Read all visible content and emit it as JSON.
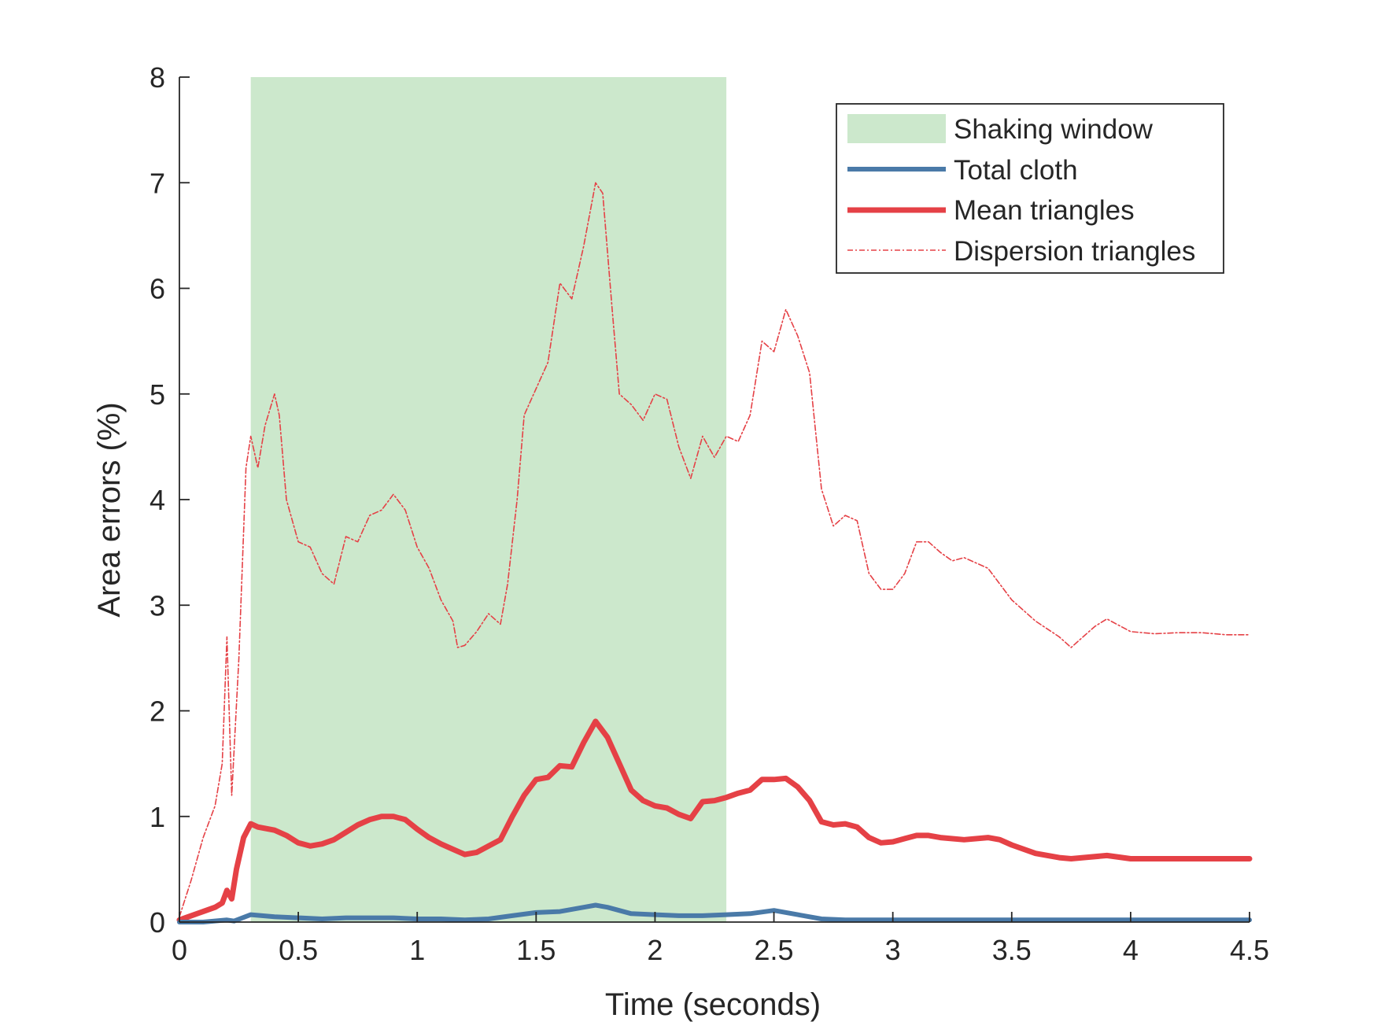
{
  "colors": {
    "shaking_window": "#cce8cc",
    "total_cloth": "#4a7aa8",
    "mean_triangles": "#e54146",
    "dispersion_triangles": "#e54146",
    "axis": "#262626"
  },
  "chart_data": {
    "type": "line",
    "xlabel": "Time (seconds)",
    "ylabel": "Area errors (%)",
    "xlim": [
      0,
      4.5
    ],
    "ylim": [
      0,
      8
    ],
    "xticks": [
      0,
      0.5,
      1,
      1.5,
      2,
      2.5,
      3,
      3.5,
      4,
      4.5
    ],
    "xtick_labels": [
      "0",
      "0.5",
      "1",
      "1.5",
      "2",
      "2.5",
      "3",
      "3.5",
      "4",
      "4.5"
    ],
    "yticks": [
      0,
      1,
      2,
      3,
      4,
      5,
      6,
      7,
      8
    ],
    "ytick_labels": [
      "0",
      "1",
      "2",
      "3",
      "4",
      "5",
      "6",
      "7",
      "8"
    ],
    "grid": false,
    "legend_position": "top-right",
    "shaded_region": {
      "name": "Shaking window",
      "x_start": 0.3,
      "x_end": 2.3
    },
    "legend": [
      "Shaking window",
      "Total cloth",
      "Mean triangles",
      "Dispersion triangles"
    ],
    "series": [
      {
        "name": "Total cloth",
        "style": "solid-medium",
        "points": [
          [
            0,
            0
          ],
          [
            0.1,
            0.0
          ],
          [
            0.2,
            0.02
          ],
          [
            0.23,
            0.01
          ],
          [
            0.3,
            0.07
          ],
          [
            0.4,
            0.05
          ],
          [
            0.5,
            0.04
          ],
          [
            0.6,
            0.03
          ],
          [
            0.7,
            0.04
          ],
          [
            0.8,
            0.04
          ],
          [
            0.9,
            0.04
          ],
          [
            1.0,
            0.03
          ],
          [
            1.1,
            0.03
          ],
          [
            1.2,
            0.02
          ],
          [
            1.3,
            0.03
          ],
          [
            1.4,
            0.06
          ],
          [
            1.5,
            0.09
          ],
          [
            1.6,
            0.1
          ],
          [
            1.7,
            0.14
          ],
          [
            1.75,
            0.16
          ],
          [
            1.8,
            0.14
          ],
          [
            1.9,
            0.08
          ],
          [
            2.0,
            0.07
          ],
          [
            2.1,
            0.06
          ],
          [
            2.2,
            0.06
          ],
          [
            2.3,
            0.07
          ],
          [
            2.4,
            0.08
          ],
          [
            2.5,
            0.11
          ],
          [
            2.6,
            0.07
          ],
          [
            2.7,
            0.03
          ],
          [
            2.8,
            0.02
          ],
          [
            3.0,
            0.02
          ],
          [
            3.2,
            0.02
          ],
          [
            3.5,
            0.02
          ],
          [
            4.0,
            0.02
          ],
          [
            4.5,
            0.02
          ]
        ]
      },
      {
        "name": "Mean triangles",
        "style": "solid-thick",
        "points": [
          [
            0,
            0.02
          ],
          [
            0.05,
            0.06
          ],
          [
            0.1,
            0.1
          ],
          [
            0.15,
            0.14
          ],
          [
            0.18,
            0.18
          ],
          [
            0.2,
            0.3
          ],
          [
            0.22,
            0.22
          ],
          [
            0.24,
            0.5
          ],
          [
            0.27,
            0.8
          ],
          [
            0.3,
            0.93
          ],
          [
            0.33,
            0.9
          ],
          [
            0.4,
            0.87
          ],
          [
            0.45,
            0.82
          ],
          [
            0.5,
            0.75
          ],
          [
            0.55,
            0.72
          ],
          [
            0.6,
            0.74
          ],
          [
            0.65,
            0.78
          ],
          [
            0.7,
            0.85
          ],
          [
            0.75,
            0.92
          ],
          [
            0.8,
            0.97
          ],
          [
            0.85,
            1.0
          ],
          [
            0.9,
            1.0
          ],
          [
            0.95,
            0.97
          ],
          [
            1.0,
            0.88
          ],
          [
            1.05,
            0.8
          ],
          [
            1.1,
            0.74
          ],
          [
            1.15,
            0.69
          ],
          [
            1.2,
            0.64
          ],
          [
            1.25,
            0.66
          ],
          [
            1.3,
            0.72
          ],
          [
            1.35,
            0.78
          ],
          [
            1.4,
            1.0
          ],
          [
            1.45,
            1.2
          ],
          [
            1.5,
            1.35
          ],
          [
            1.55,
            1.37
          ],
          [
            1.6,
            1.48
          ],
          [
            1.65,
            1.47
          ],
          [
            1.7,
            1.7
          ],
          [
            1.75,
            1.9
          ],
          [
            1.8,
            1.75
          ],
          [
            1.85,
            1.5
          ],
          [
            1.9,
            1.25
          ],
          [
            1.95,
            1.15
          ],
          [
            2.0,
            1.1
          ],
          [
            2.05,
            1.08
          ],
          [
            2.1,
            1.02
          ],
          [
            2.15,
            0.98
          ],
          [
            2.2,
            1.14
          ],
          [
            2.25,
            1.15
          ],
          [
            2.3,
            1.18
          ],
          [
            2.35,
            1.22
          ],
          [
            2.4,
            1.25
          ],
          [
            2.45,
            1.35
          ],
          [
            2.5,
            1.35
          ],
          [
            2.55,
            1.36
          ],
          [
            2.6,
            1.28
          ],
          [
            2.65,
            1.15
          ],
          [
            2.7,
            0.95
          ],
          [
            2.75,
            0.92
          ],
          [
            2.8,
            0.93
          ],
          [
            2.85,
            0.9
          ],
          [
            2.9,
            0.8
          ],
          [
            2.95,
            0.75
          ],
          [
            3.0,
            0.76
          ],
          [
            3.05,
            0.79
          ],
          [
            3.1,
            0.82
          ],
          [
            3.15,
            0.82
          ],
          [
            3.2,
            0.8
          ],
          [
            3.3,
            0.78
          ],
          [
            3.4,
            0.8
          ],
          [
            3.45,
            0.78
          ],
          [
            3.5,
            0.73
          ],
          [
            3.6,
            0.65
          ],
          [
            3.7,
            0.61
          ],
          [
            3.75,
            0.6
          ],
          [
            3.8,
            0.61
          ],
          [
            3.9,
            0.63
          ],
          [
            4.0,
            0.6
          ],
          [
            4.2,
            0.6
          ],
          [
            4.5,
            0.6
          ]
        ]
      },
      {
        "name": "Dispersion triangles",
        "style": "dash-dot-thin",
        "points": [
          [
            0,
            0.05
          ],
          [
            0.05,
            0.4
          ],
          [
            0.1,
            0.8
          ],
          [
            0.15,
            1.1
          ],
          [
            0.18,
            1.5
          ],
          [
            0.2,
            2.7
          ],
          [
            0.22,
            1.2
          ],
          [
            0.25,
            2.5
          ],
          [
            0.28,
            4.3
          ],
          [
            0.3,
            4.6
          ],
          [
            0.33,
            4.3
          ],
          [
            0.36,
            4.7
          ],
          [
            0.4,
            5.0
          ],
          [
            0.42,
            4.8
          ],
          [
            0.45,
            4.0
          ],
          [
            0.5,
            3.6
          ],
          [
            0.55,
            3.55
          ],
          [
            0.6,
            3.3
          ],
          [
            0.65,
            3.2
          ],
          [
            0.7,
            3.65
          ],
          [
            0.75,
            3.6
          ],
          [
            0.8,
            3.85
          ],
          [
            0.85,
            3.9
          ],
          [
            0.9,
            4.05
          ],
          [
            0.95,
            3.9
          ],
          [
            1.0,
            3.55
          ],
          [
            1.05,
            3.35
          ],
          [
            1.1,
            3.05
          ],
          [
            1.15,
            2.85
          ],
          [
            1.17,
            2.6
          ],
          [
            1.2,
            2.62
          ],
          [
            1.25,
            2.75
          ],
          [
            1.3,
            2.92
          ],
          [
            1.35,
            2.82
          ],
          [
            1.38,
            3.2
          ],
          [
            1.42,
            4.0
          ],
          [
            1.45,
            4.8
          ],
          [
            1.5,
            5.05
          ],
          [
            1.55,
            5.3
          ],
          [
            1.6,
            6.05
          ],
          [
            1.65,
            5.9
          ],
          [
            1.7,
            6.4
          ],
          [
            1.75,
            7.0
          ],
          [
            1.78,
            6.9
          ],
          [
            1.82,
            5.8
          ],
          [
            1.85,
            5.0
          ],
          [
            1.9,
            4.9
          ],
          [
            1.95,
            4.75
          ],
          [
            2.0,
            5.0
          ],
          [
            2.05,
            4.95
          ],
          [
            2.1,
            4.5
          ],
          [
            2.15,
            4.2
          ],
          [
            2.2,
            4.6
          ],
          [
            2.25,
            4.4
          ],
          [
            2.3,
            4.6
          ],
          [
            2.35,
            4.55
          ],
          [
            2.4,
            4.8
          ],
          [
            2.45,
            5.5
          ],
          [
            2.5,
            5.4
          ],
          [
            2.55,
            5.8
          ],
          [
            2.6,
            5.55
          ],
          [
            2.65,
            5.2
          ],
          [
            2.7,
            4.1
          ],
          [
            2.75,
            3.75
          ],
          [
            2.8,
            3.85
          ],
          [
            2.85,
            3.8
          ],
          [
            2.9,
            3.3
          ],
          [
            2.95,
            3.15
          ],
          [
            3.0,
            3.15
          ],
          [
            3.05,
            3.3
          ],
          [
            3.1,
            3.6
          ],
          [
            3.15,
            3.6
          ],
          [
            3.2,
            3.5
          ],
          [
            3.25,
            3.42
          ],
          [
            3.3,
            3.45
          ],
          [
            3.4,
            3.35
          ],
          [
            3.45,
            3.2
          ],
          [
            3.5,
            3.05
          ],
          [
            3.6,
            2.85
          ],
          [
            3.7,
            2.7
          ],
          [
            3.75,
            2.6
          ],
          [
            3.8,
            2.7
          ],
          [
            3.85,
            2.8
          ],
          [
            3.9,
            2.87
          ],
          [
            4.0,
            2.75
          ],
          [
            4.1,
            2.73
          ],
          [
            4.2,
            2.74
          ],
          [
            4.3,
            2.74
          ],
          [
            4.4,
            2.72
          ],
          [
            4.5,
            2.72
          ]
        ]
      }
    ]
  }
}
